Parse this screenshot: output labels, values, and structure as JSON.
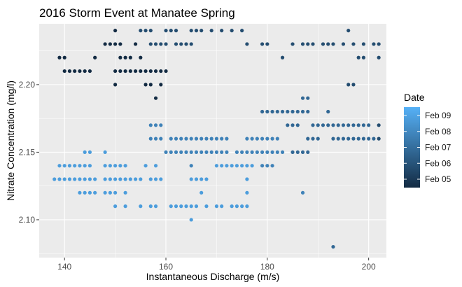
{
  "chart_data": {
    "type": "scatter",
    "title": "2016 Storm Event at Manatee Spring",
    "xlabel": "Instantaneous Discharge (m/s)",
    "ylabel": "Nitrate Concentration (mg/l)",
    "xlim": [
      135,
      203.5
    ],
    "ylim": [
      2.072,
      2.245
    ],
    "x_ticks": [
      140,
      160,
      180,
      200
    ],
    "x_tick_labels": [
      "140",
      "160",
      "180",
      "200"
    ],
    "y_ticks": [
      2.1,
      2.15,
      2.2
    ],
    "y_tick_labels": [
      "2.10",
      "2.15",
      "2.20"
    ],
    "grid": true,
    "legend": {
      "title": "Date",
      "placement": "right",
      "labels": [
        "Feb 09",
        "Feb 08",
        "Feb 07",
        "Feb 06",
        "Feb 05"
      ],
      "gradient_low": "#132B43",
      "gradient_high": "#56B1F7"
    },
    "colors": {
      "panel_bg": "#ebebeb",
      "grid_major": "#ffffff",
      "point_dark": "#132B43",
      "point_mid": "#2c5a83",
      "point_light": "#4a96d6",
      "point_lightest": "#56B1F7"
    },
    "series": [
      {
        "date_level": 0.0,
        "points": [
          [
            139,
            2.22
          ],
          [
            140,
            2.22
          ],
          [
            140,
            2.21
          ],
          [
            141,
            2.21
          ],
          [
            142,
            2.21
          ],
          [
            143,
            2.21
          ],
          [
            144,
            2.21
          ],
          [
            145,
            2.21
          ],
          [
            146,
            2.22
          ],
          [
            148,
            2.23
          ],
          [
            149,
            2.23
          ],
          [
            150,
            2.24
          ],
          [
            150,
            2.23
          ],
          [
            150,
            2.21
          ],
          [
            150,
            2.2
          ],
          [
            151,
            2.23
          ],
          [
            151,
            2.22
          ],
          [
            151,
            2.21
          ],
          [
            152,
            2.22
          ],
          [
            152,
            2.21
          ],
          [
            153,
            2.22
          ],
          [
            153,
            2.21
          ],
          [
            154,
            2.23
          ],
          [
            154,
            2.21
          ],
          [
            155,
            2.22
          ],
          [
            155,
            2.21
          ],
          [
            156,
            2.21
          ],
          [
            156,
            2.2
          ],
          [
            157,
            2.21
          ],
          [
            157,
            2.2
          ],
          [
            158,
            2.21
          ],
          [
            158,
            2.19
          ],
          [
            159,
            2.21
          ],
          [
            159,
            2.2
          ],
          [
            160,
            2.21
          ]
        ]
      },
      {
        "date_level": 0.25,
        "points": [
          [
            155,
            2.24
          ],
          [
            156,
            2.24
          ],
          [
            157,
            2.24
          ],
          [
            157,
            2.23
          ],
          [
            158,
            2.23
          ],
          [
            159,
            2.23
          ],
          [
            160,
            2.24
          ],
          [
            160,
            2.23
          ],
          [
            161,
            2.24
          ],
          [
            162,
            2.24
          ],
          [
            162,
            2.23
          ],
          [
            163,
            2.23
          ],
          [
            164,
            2.23
          ],
          [
            165,
            2.24
          ],
          [
            165,
            2.23
          ],
          [
            166,
            2.24
          ],
          [
            167,
            2.24
          ],
          [
            169,
            2.24
          ],
          [
            171,
            2.24
          ],
          [
            173,
            2.24
          ],
          [
            175,
            2.24
          ],
          [
            176,
            2.23
          ],
          [
            179,
            2.23
          ],
          [
            180,
            2.23
          ],
          [
            183,
            2.22
          ],
          [
            185,
            2.23
          ],
          [
            187,
            2.23
          ],
          [
            188,
            2.23
          ],
          [
            189,
            2.23
          ],
          [
            191,
            2.23
          ],
          [
            192,
            2.23
          ],
          [
            193,
            2.23
          ],
          [
            195,
            2.23
          ],
          [
            196,
            2.24
          ],
          [
            196,
            2.2
          ],
          [
            197,
            2.23
          ],
          [
            197,
            2.2
          ],
          [
            198,
            2.22
          ],
          [
            199,
            2.23
          ],
          [
            199,
            2.22
          ],
          [
            201,
            2.23
          ],
          [
            202,
            2.23
          ],
          [
            202,
            2.22
          ],
          [
            202,
            2.17
          ],
          [
            202,
            2.16
          ]
        ]
      },
      {
        "date_level": 0.45,
        "points": [
          [
            179,
            2.18
          ],
          [
            180,
            2.18
          ],
          [
            181,
            2.18
          ],
          [
            182,
            2.18
          ],
          [
            183,
            2.18
          ],
          [
            184,
            2.18
          ],
          [
            185,
            2.18
          ],
          [
            186,
            2.18
          ],
          [
            187,
            2.19
          ],
          [
            187,
            2.18
          ],
          [
            188,
            2.19
          ],
          [
            188,
            2.18
          ],
          [
            189,
            2.17
          ],
          [
            190,
            2.17
          ],
          [
            191,
            2.17
          ],
          [
            192,
            2.17
          ],
          [
            193,
            2.17
          ],
          [
            194,
            2.17
          ],
          [
            195,
            2.17
          ],
          [
            196,
            2.17
          ],
          [
            197,
            2.17
          ],
          [
            198,
            2.17
          ],
          [
            199,
            2.17
          ],
          [
            200,
            2.17
          ],
          [
            188,
            2.16
          ],
          [
            189,
            2.16
          ],
          [
            190,
            2.16
          ],
          [
            193,
            2.16
          ],
          [
            194,
            2.16
          ],
          [
            195,
            2.16
          ],
          [
            196,
            2.16
          ],
          [
            197,
            2.16
          ],
          [
            198,
            2.16
          ],
          [
            199,
            2.16
          ],
          [
            200,
            2.16
          ],
          [
            201,
            2.16
          ],
          [
            192,
            2.18
          ],
          [
            184,
            2.17
          ],
          [
            185,
            2.17
          ],
          [
            186,
            2.17
          ],
          [
            185,
            2.15
          ],
          [
            186,
            2.15
          ],
          [
            187,
            2.15
          ],
          [
            188,
            2.15
          ],
          [
            193,
            2.08
          ]
        ]
      },
      {
        "date_level": 0.65,
        "points": [
          [
            157,
            2.17
          ],
          [
            158,
            2.17
          ],
          [
            159,
            2.17
          ],
          [
            157,
            2.16
          ],
          [
            158,
            2.16
          ],
          [
            159,
            2.16
          ],
          [
            161,
            2.16
          ],
          [
            162,
            2.16
          ],
          [
            163,
            2.16
          ],
          [
            164,
            2.16
          ],
          [
            165,
            2.16
          ],
          [
            166,
            2.16
          ],
          [
            167,
            2.16
          ],
          [
            168,
            2.16
          ],
          [
            169,
            2.16
          ],
          [
            170,
            2.16
          ],
          [
            171,
            2.16
          ],
          [
            172,
            2.16
          ],
          [
            176,
            2.16
          ],
          [
            177,
            2.16
          ],
          [
            178,
            2.16
          ],
          [
            160,
            2.15
          ],
          [
            161,
            2.15
          ],
          [
            162,
            2.15
          ],
          [
            163,
            2.15
          ],
          [
            164,
            2.15
          ],
          [
            165,
            2.15
          ],
          [
            166,
            2.15
          ],
          [
            167,
            2.15
          ],
          [
            168,
            2.15
          ],
          [
            169,
            2.15
          ],
          [
            170,
            2.15
          ],
          [
            171,
            2.15
          ],
          [
            172,
            2.15
          ],
          [
            174,
            2.15
          ],
          [
            175,
            2.15
          ],
          [
            176,
            2.15
          ],
          [
            177,
            2.15
          ],
          [
            178,
            2.15
          ],
          [
            179,
            2.15
          ],
          [
            180,
            2.15
          ],
          [
            181,
            2.15
          ],
          [
            182,
            2.15
          ],
          [
            183,
            2.15
          ],
          [
            179,
            2.16
          ],
          [
            180,
            2.16
          ],
          [
            181,
            2.16
          ],
          [
            182,
            2.16
          ],
          [
            165,
            2.14
          ],
          [
            179,
            2.14
          ],
          [
            180,
            2.14
          ],
          [
            181,
            2.14
          ],
          [
            187,
            2.12
          ]
        ]
      },
      {
        "date_level": 0.85,
        "points": [
          [
            138,
            2.13
          ],
          [
            139,
            2.13
          ],
          [
            140,
            2.13
          ],
          [
            141,
            2.13
          ],
          [
            142,
            2.13
          ],
          [
            143,
            2.13
          ],
          [
            144,
            2.13
          ],
          [
            145,
            2.13
          ],
          [
            146,
            2.13
          ],
          [
            139,
            2.14
          ],
          [
            140,
            2.14
          ],
          [
            141,
            2.14
          ],
          [
            142,
            2.14
          ],
          [
            143,
            2.14
          ],
          [
            144,
            2.14
          ],
          [
            145,
            2.14
          ],
          [
            144,
            2.15
          ],
          [
            145,
            2.15
          ],
          [
            143,
            2.12
          ],
          [
            144,
            2.12
          ],
          [
            145,
            2.12
          ],
          [
            146,
            2.12
          ],
          [
            148,
            2.15
          ],
          [
            148,
            2.14
          ],
          [
            149,
            2.14
          ],
          [
            150,
            2.14
          ],
          [
            151,
            2.14
          ],
          [
            152,
            2.14
          ],
          [
            148,
            2.13
          ],
          [
            149,
            2.13
          ],
          [
            150,
            2.13
          ],
          [
            151,
            2.13
          ],
          [
            152,
            2.13
          ],
          [
            153,
            2.13
          ],
          [
            154,
            2.13
          ],
          [
            155,
            2.13
          ],
          [
            148,
            2.12
          ],
          [
            149,
            2.12
          ],
          [
            150,
            2.12
          ],
          [
            152,
            2.12
          ],
          [
            150,
            2.11
          ],
          [
            152,
            2.11
          ],
          [
            155,
            2.11
          ],
          [
            157,
            2.11
          ],
          [
            158,
            2.11
          ],
          [
            156,
            2.14
          ],
          [
            158,
            2.14
          ],
          [
            157,
            2.13
          ],
          [
            158,
            2.13
          ],
          [
            159,
            2.13
          ],
          [
            161,
            2.11
          ],
          [
            162,
            2.11
          ],
          [
            163,
            2.11
          ],
          [
            164,
            2.11
          ],
          [
            165,
            2.11
          ],
          [
            166,
            2.11
          ],
          [
            168,
            2.11
          ],
          [
            170,
            2.11
          ],
          [
            171,
            2.11
          ],
          [
            173,
            2.11
          ],
          [
            174,
            2.11
          ],
          [
            175,
            2.11
          ],
          [
            176,
            2.11
          ],
          [
            165,
            2.13
          ],
          [
            166,
            2.13
          ],
          [
            167,
            2.13
          ],
          [
            168,
            2.13
          ],
          [
            167,
            2.12
          ],
          [
            170,
            2.14
          ],
          [
            171,
            2.14
          ],
          [
            172,
            2.14
          ],
          [
            173,
            2.14
          ],
          [
            174,
            2.14
          ],
          [
            175,
            2.14
          ],
          [
            176,
            2.14
          ],
          [
            177,
            2.14
          ],
          [
            176,
            2.13
          ],
          [
            176,
            2.12
          ],
          [
            165,
            2.1
          ]
        ]
      }
    ]
  }
}
